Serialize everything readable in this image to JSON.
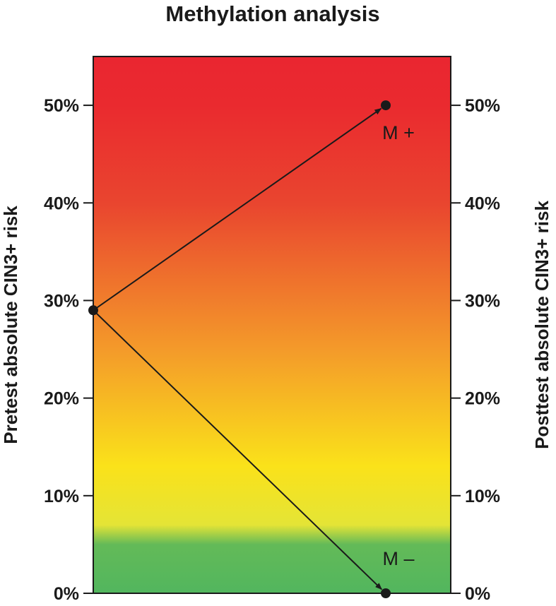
{
  "chart_data": {
    "type": "line",
    "title": "Methylation analysis",
    "ylabel_left": "Pretest absolute CIN3+ risk",
    "ylabel_right": "Posttest absolute CIN3+ risk",
    "ylim": [
      0,
      55
    ],
    "yticks": [
      0,
      10,
      20,
      30,
      40,
      50
    ],
    "ytick_labels": [
      "0%",
      "10%",
      "20%",
      "30%",
      "40%",
      "50%"
    ],
    "pretest_risk": 29,
    "series": [
      {
        "name": "M +",
        "from": 29,
        "to": 50
      },
      {
        "name": "M –",
        "from": 29,
        "to": 0
      }
    ],
    "grid": false,
    "background_gradient": [
      {
        "value": 0,
        "color": "#52b65e"
      },
      {
        "value": 5,
        "color": "#63ba58"
      },
      {
        "value": 7,
        "color": "#e4e436"
      },
      {
        "value": 13,
        "color": "#fae21a"
      },
      {
        "value": 25,
        "color": "#f49a2a"
      },
      {
        "value": 40,
        "color": "#e9452f"
      },
      {
        "value": 50,
        "color": "#ea2a2f"
      },
      {
        "value": 55,
        "color": "#ea2630"
      }
    ]
  }
}
